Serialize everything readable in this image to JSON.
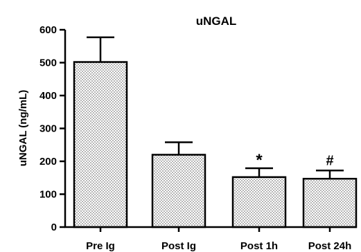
{
  "chart_data": {
    "type": "bar",
    "title": "uNGAL",
    "xlabel": "",
    "ylabel": "uNGAL  (ng/mL)",
    "categories": [
      "Pre Ig",
      "Post Ig",
      "Post 1h",
      "Post 24h"
    ],
    "values": [
      502,
      220,
      152,
      147
    ],
    "errors": [
      75,
      38,
      27,
      25
    ],
    "annotations": [
      "",
      "",
      "*",
      "#"
    ],
    "ylim": [
      0,
      600
    ],
    "yticks": [
      0,
      100,
      200,
      300,
      400,
      500,
      600
    ],
    "grid": false,
    "bar_fill": "dotted",
    "colors": {
      "bar_stroke": "#000000",
      "dot": "#000000",
      "background": "#ffffff"
    }
  }
}
